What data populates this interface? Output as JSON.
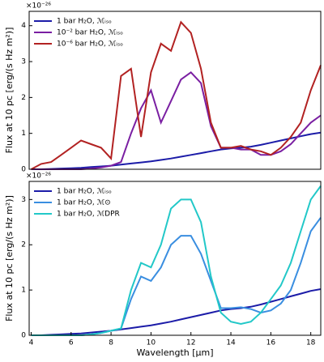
{
  "chart_data": [
    {
      "type": "line",
      "exponent": "×10⁻²⁶",
      "ylabel": "Flux at 10 pc [erg/(s Hz m²)]",
      "x": [
        4,
        4.5,
        5,
        5.5,
        6,
        6.5,
        7,
        7.5,
        8,
        8.5,
        9,
        9.5,
        10,
        10.5,
        11,
        11.5,
        12,
        12.5,
        13,
        13.5,
        14,
        14.5,
        15,
        15.5,
        16,
        16.5,
        17,
        17.5,
        18,
        18.5
      ],
      "series": [
        {
          "name": "1 bar H₂O, ℳᵢₛₒ",
          "color": "#1c1ca8",
          "values": [
            0,
            0,
            0.01,
            0.02,
            0.03,
            0.04,
            0.06,
            0.08,
            0.1,
            0.13,
            0.16,
            0.19,
            0.22,
            0.26,
            0.3,
            0.35,
            0.4,
            0.45,
            0.5,
            0.55,
            0.58,
            0.6,
            0.63,
            0.68,
            0.74,
            0.8,
            0.86,
            0.92,
            0.98,
            1.02
          ]
        },
        {
          "name": "10⁻² bar H₂O, ℳᵢₛₒ",
          "color": "#7a1fa2",
          "values": [
            0,
            0,
            0,
            0,
            0,
            0,
            0.02,
            0.05,
            0.1,
            0.2,
            1.0,
            1.7,
            2.2,
            1.3,
            1.9,
            2.5,
            2.7,
            2.4,
            1.2,
            0.6,
            0.6,
            0.55,
            0.55,
            0.4,
            0.4,
            0.5,
            0.7,
            1.0,
            1.3,
            1.5
          ]
        },
        {
          "name": "10⁻⁶ bar H₂O, ℳᵢₛₒ",
          "color": "#b22222",
          "values": [
            0,
            0.15,
            0.2,
            0.4,
            0.6,
            0.8,
            0.7,
            0.6,
            0.3,
            2.6,
            2.8,
            0.9,
            2.7,
            3.5,
            3.3,
            4.1,
            3.8,
            2.8,
            1.3,
            0.6,
            0.6,
            0.65,
            0.55,
            0.5,
            0.4,
            0.6,
            0.9,
            1.3,
            2.2,
            2.9
          ]
        }
      ],
      "xlim": [
        3.9,
        18.5
      ],
      "ylim": [
        0,
        4.4
      ],
      "yticks": [
        0,
        1,
        2,
        3,
        4
      ],
      "legend": "upper-left"
    },
    {
      "type": "line",
      "exponent": "×10⁻²⁶",
      "ylabel": "Flux at 10 pc [erg/(s Hz m²)]",
      "xlabel": "Wavelength [μm]",
      "x": [
        4,
        4.5,
        5,
        5.5,
        6,
        6.5,
        7,
        7.5,
        8,
        8.5,
        9,
        9.5,
        10,
        10.5,
        11,
        11.5,
        12,
        12.5,
        13,
        13.5,
        14,
        14.5,
        15,
        15.5,
        16,
        16.5,
        17,
        17.5,
        18,
        18.5
      ],
      "series": [
        {
          "name": "1 bar H₂O, ℳᵢₛₒ",
          "color": "#1c1ca8",
          "values": [
            0,
            0,
            0.01,
            0.02,
            0.03,
            0.04,
            0.06,
            0.08,
            0.1,
            0.13,
            0.16,
            0.19,
            0.22,
            0.26,
            0.3,
            0.35,
            0.4,
            0.45,
            0.5,
            0.55,
            0.58,
            0.6,
            0.63,
            0.68,
            0.74,
            0.8,
            0.86,
            0.92,
            0.98,
            1.02
          ]
        },
        {
          "name": "1 bar H₂O, ℳ⊙",
          "color": "#3a8ee0",
          "values": [
            0,
            0,
            0,
            0,
            0,
            0,
            0.02,
            0.05,
            0.1,
            0.15,
            0.8,
            1.3,
            1.2,
            1.5,
            2.0,
            2.2,
            2.2,
            1.8,
            1.2,
            0.6,
            0.6,
            0.62,
            0.58,
            0.5,
            0.55,
            0.7,
            1.0,
            1.6,
            2.3,
            2.6
          ]
        },
        {
          "name": "1 bar H₂O, ℳDPR",
          "color": "#22c8c8",
          "values": [
            0,
            0,
            0,
            0,
            0,
            0,
            0.02,
            0.05,
            0.1,
            0.15,
            1.0,
            1.6,
            1.5,
            2.0,
            2.8,
            3.0,
            3.0,
            2.5,
            1.3,
            0.5,
            0.3,
            0.25,
            0.3,
            0.5,
            0.8,
            1.1,
            1.6,
            2.3,
            3.0,
            3.3
          ]
        }
      ],
      "xlim": [
        3.9,
        18.5
      ],
      "ylim": [
        0,
        3.4
      ],
      "xticks": [
        4,
        6,
        8,
        10,
        12,
        14,
        16,
        18
      ],
      "yticks": [
        0,
        1,
        2,
        3
      ],
      "legend": "upper-left"
    }
  ]
}
